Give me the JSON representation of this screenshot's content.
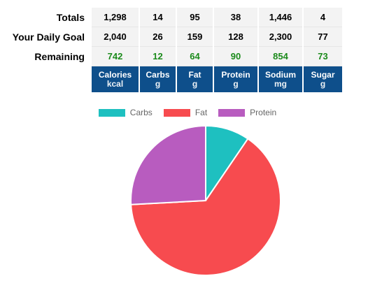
{
  "table": {
    "columns": [
      {
        "name": "Calories",
        "unit": "kcal"
      },
      {
        "name": "Carbs",
        "unit": "g"
      },
      {
        "name": "Fat",
        "unit": "g"
      },
      {
        "name": "Protein",
        "unit": "g"
      },
      {
        "name": "Sodium",
        "unit": "mg"
      },
      {
        "name": "Sugar",
        "unit": "g"
      }
    ],
    "rows": [
      {
        "label": "Totals",
        "values": [
          "1,298",
          "14",
          "95",
          "38",
          "1,446",
          "4"
        ]
      },
      {
        "label": "Your Daily Goal",
        "values": [
          "2,040",
          "26",
          "159",
          "128",
          "2,300",
          "77"
        ]
      },
      {
        "label": "Remaining",
        "values": [
          "742",
          "12",
          "64",
          "90",
          "854",
          "73"
        ]
      }
    ]
  },
  "chart_data": {
    "type": "pie",
    "categories": [
      "Carbs",
      "Fat",
      "Protein"
    ],
    "values": [
      14,
      95,
      38
    ],
    "colors": [
      "#1ec0c0",
      "#f74b4f",
      "#b85cbf"
    ],
    "legend": "top"
  }
}
